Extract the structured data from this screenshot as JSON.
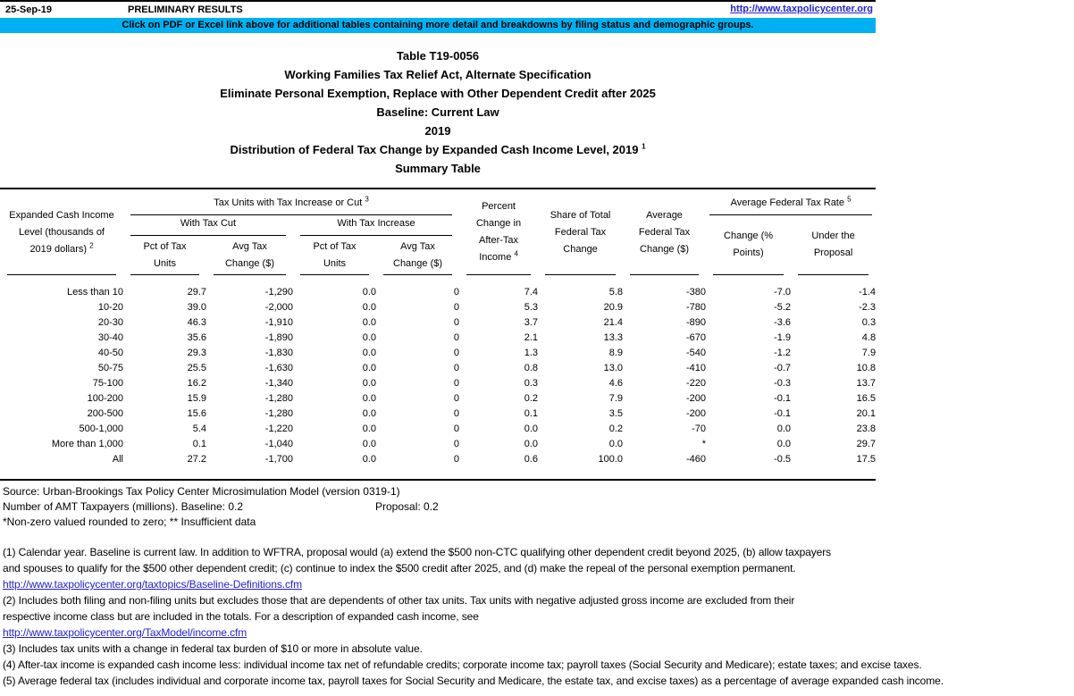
{
  "page": {
    "date": "25-Sep-19",
    "preliminary": "PRELIMINARY RESULTS",
    "site_url": "http://www.taxpolicycenter.org",
    "banner": "Click on PDF or Excel link above for additional tables containing more detail and breakdowns by filing status and demographic groups."
  },
  "colors": {
    "banner_background": "#00B0F0",
    "link": "#2222D4",
    "text": "#000000",
    "background": "#FFFFFF"
  },
  "titles": {
    "line1": "Table T19-0056",
    "line2": "Working Families Tax Relief Act, Alternate Specification",
    "line3": "Eliminate Personal Exemption, Replace with Other Dependent Credit after 2025",
    "line4": "Baseline: Current Law",
    "line5": "2019",
    "line6": "Distribution of Federal Tax Change by Expanded Cash Income Level, 2019",
    "line6_sup": "1",
    "line7": "Summary Table"
  },
  "table": {
    "hdr": {
      "income1": "Expanded Cash Income",
      "income2": "Level (thousands of",
      "income3": "2019 dollars)",
      "income_sup": "2",
      "units_group": "Tax Units with Tax Increase or Cut",
      "units_group_sup": "3",
      "with_cut": "With Tax Cut",
      "with_increase": "With Tax Increase",
      "pct1": "Pct of Tax",
      "pct2": "Units",
      "avg1": "Avg Tax",
      "avg2": "Change ($)",
      "ati1": "Percent",
      "ati2": "Change in",
      "ati3": "After-Tax",
      "ati4": "Income",
      "ati_sup": "4",
      "share1": "Share of Total",
      "share2": "Federal Tax",
      "share3": "Change",
      "afc1": "Average",
      "afc2": "Federal Tax",
      "afc3": "Change ($)",
      "rate_group": "Average Federal Tax Rate",
      "rate_group_sup": "5",
      "chg1": "Change (%",
      "chg2": "Points)",
      "utp1": "Under the",
      "utp2": "Proposal"
    },
    "rows": [
      [
        "Less than 10",
        "29.7",
        "-1,290",
        "0.0",
        "0",
        "7.4",
        "5.8",
        "-380",
        "-7.0",
        "-1.4"
      ],
      [
        "10-20",
        "39.0",
        "-2,000",
        "0.0",
        "0",
        "5.3",
        "20.9",
        "-780",
        "-5.2",
        "-2.3"
      ],
      [
        "20-30",
        "46.3",
        "-1,910",
        "0.0",
        "0",
        "3.7",
        "21.4",
        "-890",
        "-3.6",
        "0.3"
      ],
      [
        "30-40",
        "35.6",
        "-1,890",
        "0.0",
        "0",
        "2.1",
        "13.3",
        "-670",
        "-1.9",
        "4.8"
      ],
      [
        "40-50",
        "29.3",
        "-1,830",
        "0.0",
        "0",
        "1.3",
        "8.9",
        "-540",
        "-1.2",
        "7.9"
      ],
      [
        "50-75",
        "25.5",
        "-1,630",
        "0.0",
        "0",
        "0.8",
        "13.0",
        "-410",
        "-0.7",
        "10.8"
      ],
      [
        "75-100",
        "16.2",
        "-1,340",
        "0.0",
        "0",
        "0.3",
        "4.6",
        "-220",
        "-0.3",
        "13.7"
      ],
      [
        "100-200",
        "15.9",
        "-1,280",
        "0.0",
        "0",
        "0.2",
        "7.9",
        "-200",
        "-0.1",
        "16.5"
      ],
      [
        "200-500",
        "15.6",
        "-1,280",
        "0.0",
        "0",
        "0.1",
        "3.5",
        "-200",
        "-0.1",
        "20.1"
      ],
      [
        "500-1,000",
        "5.4",
        "-1,220",
        "0.0",
        "0",
        "0.0",
        "0.2",
        "-70",
        "0.0",
        "23.8"
      ],
      [
        "More than 1,000",
        "0.1",
        "-1,040",
        "0.0",
        "0",
        "0.0",
        "0.0",
        "*",
        "0.0",
        "29.7"
      ],
      [
        "All",
        "27.2",
        "-1,700",
        "0.0",
        "0",
        "0.6",
        "100.0",
        "-460",
        "-0.5",
        "17.5"
      ]
    ]
  },
  "footer": {
    "source": "Source: Urban-Brookings Tax Policy Center Microsimulation Model (version 0319-1)",
    "amt": "Number of AMT Taxpayers (millions). Baseline: 0.2",
    "proposal": "Proposal: 0.2",
    "legend": "*Non-zero valued rounded to zero; ** Insufficient data"
  },
  "notes": [
    {
      "text": "(1) Calendar year. Baseline is current law. In addition to WFTRA, proposal would (a) extend the $500 non-CTC qualifying other dependent credit beyond 2025, (b) allow taxpayers",
      "link": false
    },
    {
      "text": "and spouses to qualify for the $500 other dependent credit; (c) continue to index the $500 credit after 2025, and (d) make the repeal of the personal exemption permanent.",
      "link": false
    },
    {
      "text": "http://www.taxpolicycenter.org/taxtopics/Baseline-Definitions.cfm",
      "link": true
    },
    {
      "text": "(2) Includes both filing and non-filing units but excludes those that are dependents of other tax units. Tax units with negative adjusted gross income are excluded from their",
      "link": false
    },
    {
      "text": "respective income class but are included in the totals. For a description of expanded cash income, see",
      "link": false
    },
    {
      "text": "http://www.taxpolicycenter.org/TaxModel/income.cfm",
      "link": true
    },
    {
      "text": "(3) Includes tax units with a change in federal tax burden of $10 or more in absolute value.",
      "link": false
    },
    {
      "text": "(4) After-tax income is expanded cash income less: individual income tax net of refundable credits; corporate income tax; payroll taxes (Social Security and Medicare); estate taxes; and excise taxes.",
      "link": false
    },
    {
      "text": "(5) Average federal tax (includes individual and corporate income tax, payroll taxes for Social Security and Medicare, the estate tax, and excise taxes) as a percentage of average expanded cash income.",
      "link": false
    }
  ]
}
